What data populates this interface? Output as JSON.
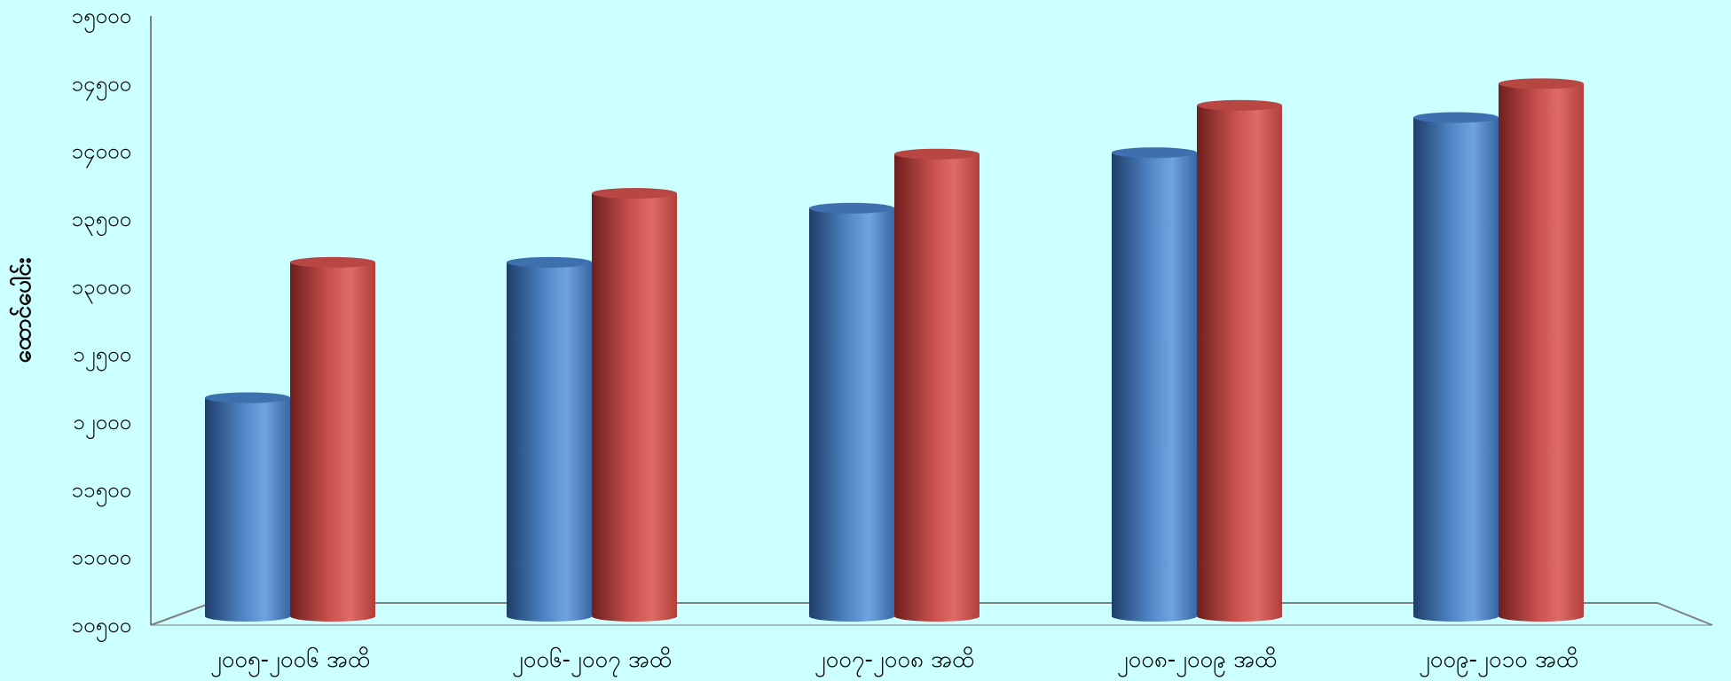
{
  "colors": {
    "background": "#ccffff",
    "series1": "#4f86c6",
    "series2": "#c8504d",
    "axis": "#808080"
  },
  "chart_data": {
    "type": "bar",
    "title": "",
    "xlabel": "",
    "ylabel": "ထောင်ပေါင်း",
    "ylim": [
      10500,
      15000
    ],
    "yticks": [
      10500,
      11000,
      11500,
      12000,
      12500,
      13000,
      13500,
      14000,
      14500,
      15000
    ],
    "ytick_labels": [
      "၁၀၅၀၀",
      "၁၁၀၀၀",
      "၁၁၅၀၀",
      "၁၂၀၀၀",
      "၁၂၅၀၀",
      "၁၃၀၀၀",
      "၁၃၅၀၀",
      "၁၄၀၀၀",
      "၁၄၅၀၀",
      "၁၅၀၀၀"
    ],
    "categories": [
      "၂၀၀၅-၂၀၀၆ အထိ",
      "၂၀၀၆-၂၀၀၇ အထိ",
      "၂၀၀၇-၂၀၀၈ အထိ",
      "၂၀၀၈-၂၀၀၉ အထိ",
      "၂၀၀၉-၂၀၁၀ အထိ"
    ],
    "series": [
      {
        "values": [
          12180,
          13180,
          13580,
          13990,
          14250
        ]
      },
      {
        "values": [
          13180,
          13690,
          13980,
          14340,
          14500
        ]
      }
    ],
    "grid": false,
    "legend": "none"
  }
}
